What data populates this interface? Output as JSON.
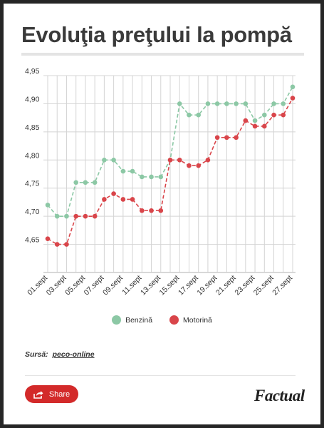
{
  "header": {
    "title": "Evoluţia preţului la pompă"
  },
  "chart_data": {
    "type": "line",
    "categories": [
      "01.sept",
      "02.sept",
      "03.sept",
      "04.sept",
      "05.sept",
      "06.sept",
      "07.sept",
      "08.sept",
      "09.sept",
      "10.sept",
      "11.sept",
      "12.sept",
      "13.sept",
      "14.sept",
      "15.sept",
      "16.sept",
      "17.sept",
      "18.sept",
      "19.sept",
      "20.sept",
      "21.sept",
      "22.sept",
      "23.sept",
      "24.sept",
      "25.sept",
      "26.sept",
      "27.sept"
    ],
    "tick_labels": [
      "01.sept",
      "03.sept",
      "05.sept",
      "07.sept",
      "09.sept",
      "11.sept",
      "13.sept",
      "15.sept",
      "17.sept",
      "19.sept",
      "21.sept",
      "23.sept",
      "25.sept",
      "27.sept"
    ],
    "series": [
      {
        "name": "Benzină",
        "color": "#8cc8a5",
        "values": [
          4.72,
          4.7,
          4.7,
          4.76,
          4.76,
          4.76,
          4.8,
          4.8,
          4.78,
          4.78,
          4.77,
          4.77,
          4.77,
          4.8,
          4.9,
          4.88,
          4.88,
          4.9,
          4.9,
          4.9,
          4.9,
          4.9,
          4.87,
          4.88,
          4.9,
          4.9,
          4.93
        ]
      },
      {
        "name": "Motorină",
        "color": "#d9454a",
        "values": [
          4.66,
          4.65,
          4.65,
          4.7,
          4.7,
          4.7,
          4.73,
          4.74,
          4.73,
          4.73,
          4.71,
          4.71,
          4.71,
          4.8,
          4.8,
          4.79,
          4.79,
          4.8,
          4.84,
          4.84,
          4.84,
          4.87,
          4.86,
          4.86,
          4.88,
          4.88,
          4.91
        ]
      }
    ],
    "y_ticks": [
      "4,65",
      "4,70",
      "4,75",
      "4,80",
      "4,85",
      "4,90",
      "4,95"
    ],
    "ylim": [
      4.6,
      4.95
    ],
    "grid": true,
    "line_style": "dashed",
    "legend_position": "bottom"
  },
  "footer": {
    "source_label": "Sursă:",
    "source_link": "peco-online",
    "share_label": "Share",
    "brand": "Factual"
  }
}
